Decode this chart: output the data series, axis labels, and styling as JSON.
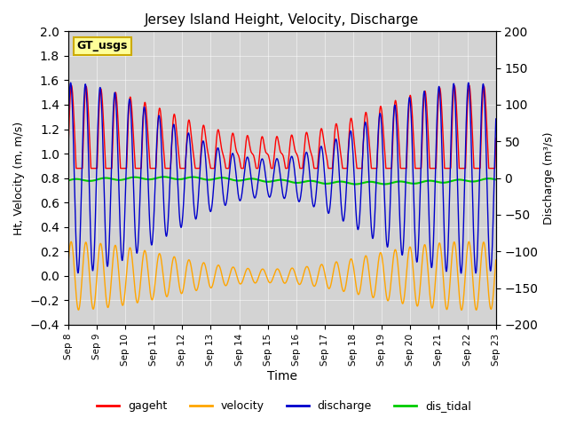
{
  "title": "Jersey Island Height, Velocity, Discharge",
  "xlabel": "Time",
  "ylabel_left": "Ht, Velocity (m, m/s)",
  "ylabel_right": "Discharge (m³/s)",
  "ylim_left": [
    -0.4,
    2.0
  ],
  "ylim_right": [
    -200,
    200
  ],
  "xtick_labels": [
    "Sep 8",
    "Sep 9",
    "Sep 10",
    "Sep 11",
    "Sep 12",
    "Sep 13",
    "Sep 14",
    "Sep 15",
    "Sep 16",
    "Sep 17",
    "Sep 18",
    "Sep 19",
    "Sep 20",
    "Sep 21",
    "Sep 22",
    "Sep 23"
  ],
  "legend_entries": [
    "gageht",
    "velocity",
    "discharge",
    "dis_tidal"
  ],
  "legend_colors": [
    "#ff0000",
    "#ffa500",
    "#0000cc",
    "#00cc00"
  ],
  "gt_usgs_box_color": "#ffff99",
  "gt_usgs_border_color": "#ccaa00",
  "background_color": "#d3d3d3",
  "n_days": 15,
  "sample_rate": 200,
  "gageht_base": 1.0,
  "gageht_amp": 0.5,
  "gageht_tide_period": 0.52,
  "gageht_spring_period": 7.0,
  "velocity_amp": 0.28,
  "velocity_period": 0.52,
  "discharge_amp": 120,
  "discharge_period": 0.52,
  "dis_tidal_base": 0.78,
  "dis_tidal_amp": 0.03
}
